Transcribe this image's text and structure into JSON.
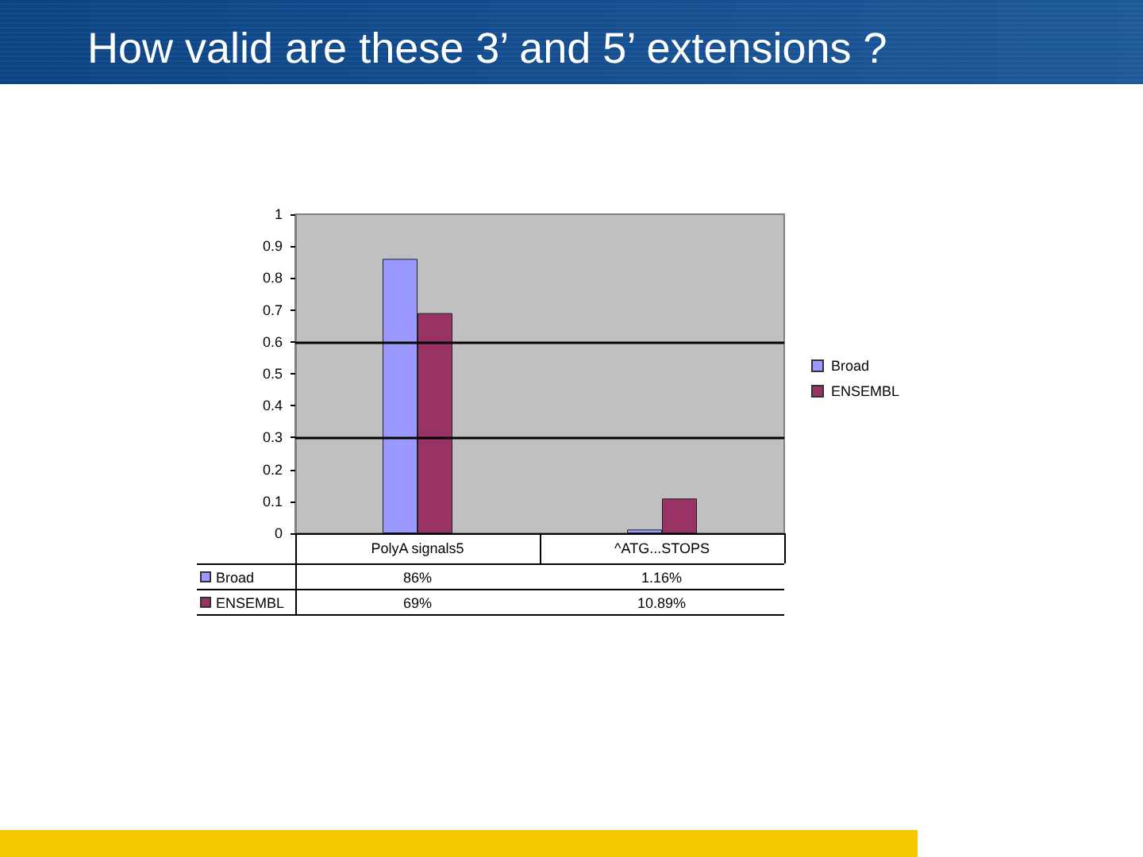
{
  "chart_data": {
    "type": "bar",
    "title": "How valid are these 3’ and 5’ extensions ?",
    "categories": [
      "PolyA signals5",
      "^ATG...STOPS"
    ],
    "series": [
      {
        "name": "Broad",
        "color": "#9999ff",
        "values": [
          0.86,
          0.0116
        ],
        "value_labels": [
          "86%",
          "1.16%"
        ]
      },
      {
        "name": "ENSEMBL",
        "color": "#993366",
        "values": [
          0.69,
          0.1089
        ],
        "value_labels": [
          "69%",
          "10.89%"
        ]
      }
    ],
    "ylim": [
      0,
      1
    ],
    "yticks": [
      0,
      0.1,
      0.2,
      0.3,
      0.4,
      0.5,
      0.6,
      0.7,
      0.8,
      0.9,
      1
    ],
    "ref_lines": [
      {
        "axis": "y",
        "value": 0.3,
        "color": "#000000"
      },
      {
        "axis": "y",
        "value": 0.6,
        "color": "#000000"
      }
    ],
    "legend": "right"
  }
}
